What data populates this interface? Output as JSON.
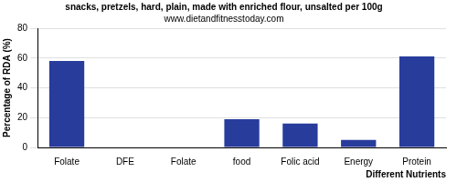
{
  "chart_data": {
    "type": "bar",
    "title": "snacks, pretzels, hard, plain, made with enriched flour, unsalted per 100g",
    "subtitle": "www.dietandfitnesstoday.com",
    "x_label": "Different Nutrients",
    "y_label": "Percentage of RDA (%)",
    "categories": [
      "Folate",
      "DFE",
      "Folate",
      "food",
      "Folic acid",
      "Energy",
      "Protein"
    ],
    "values": [
      58,
      0,
      0,
      19,
      16,
      5,
      61
    ],
    "color": "#283c9c",
    "ylim": [
      0,
      80
    ],
    "yticks": [
      0,
      20,
      40,
      60,
      80
    ],
    "grid": true
  }
}
